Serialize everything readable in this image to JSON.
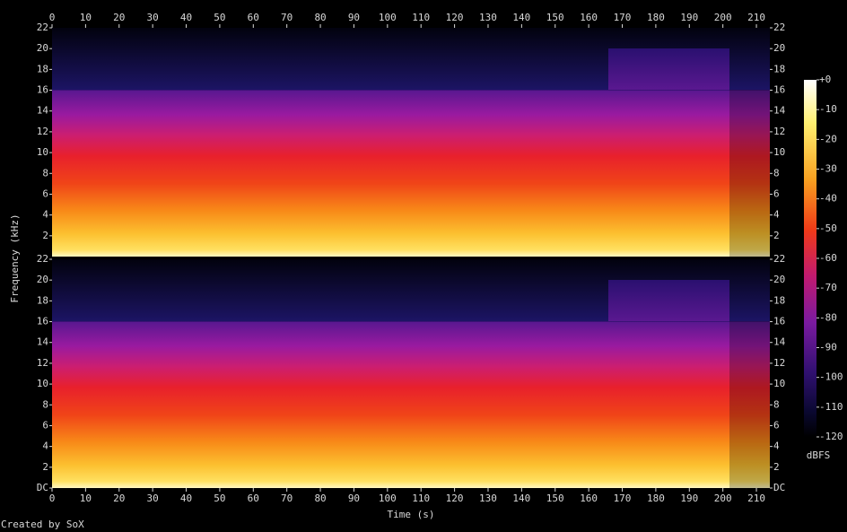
{
  "chart_data": {
    "type": "spectrogram",
    "xlabel": "Time (s)",
    "ylabel": "Frequency (kHz)",
    "xlim": [
      0,
      214
    ],
    "xticks": [
      0,
      10,
      20,
      30,
      40,
      50,
      60,
      70,
      80,
      90,
      100,
      110,
      120,
      130,
      140,
      150,
      160,
      170,
      180,
      190,
      200,
      210
    ],
    "channels": [
      {
        "ylim": [
          0,
          22
        ],
        "yticks": [
          2,
          4,
          6,
          8,
          10,
          12,
          14,
          16,
          18,
          20,
          22
        ]
      },
      {
        "ylim": [
          0,
          22
        ],
        "yticks": [
          {
            "value": 0,
            "label": "DC"
          },
          2,
          4,
          6,
          8,
          10,
          12,
          14,
          16,
          18,
          20,
          22
        ]
      }
    ],
    "colorbar": {
      "label": "dBFS",
      "lim": [
        -120,
        0
      ],
      "ticks": [
        {
          "value": 0,
          "label": "+0"
        },
        -10,
        -20,
        -30,
        -40,
        -50,
        -60,
        -70,
        -80,
        -90,
        -100,
        -110,
        -120
      ]
    },
    "credit": "Created by SoX"
  }
}
